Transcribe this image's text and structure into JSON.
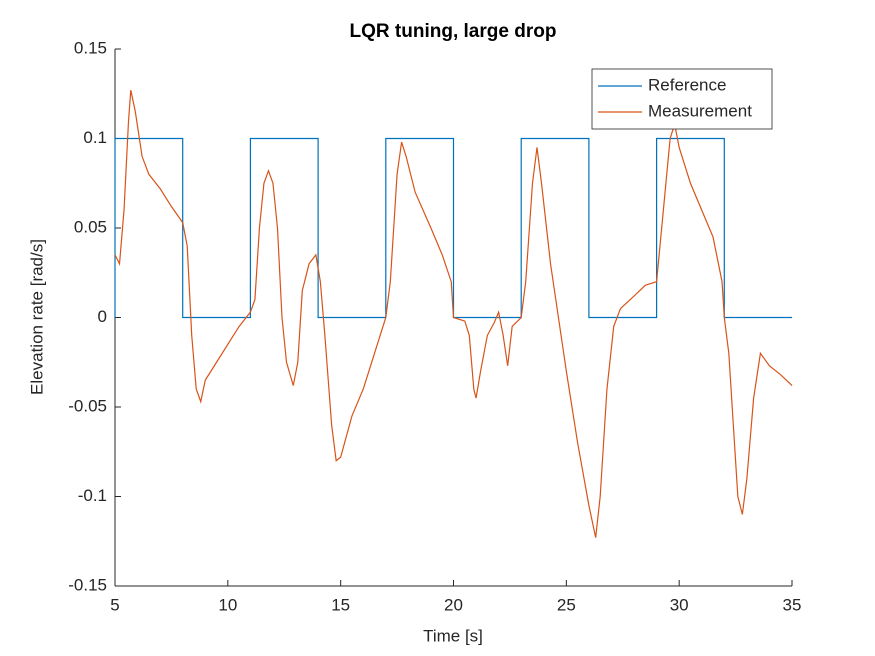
{
  "chart_data": {
    "type": "line",
    "title": "LQR tuning, large drop",
    "x_label": "Time [s]",
    "y_label": "Elevation rate [rad/s]",
    "xlim": [
      5,
      35
    ],
    "ylim": [
      -0.15,
      0.15
    ],
    "xticks": [
      5,
      10,
      15,
      20,
      25,
      30,
      35
    ],
    "yticks": [
      -0.15,
      -0.1,
      -0.05,
      0,
      0.05,
      0.1,
      0.15
    ],
    "legend": "northeast",
    "series": [
      {
        "name": "Reference",
        "color": "#0072bd",
        "x": [
          5,
          5,
          8,
          8,
          11,
          11,
          14,
          14,
          17,
          17,
          20,
          20,
          23,
          23,
          26,
          26,
          29,
          29,
          32,
          32,
          35
        ],
        "values": [
          0,
          0.1,
          0.1,
          0,
          0,
          0.1,
          0.1,
          0,
          0,
          0.1,
          0.1,
          0,
          0,
          0.1,
          0.1,
          0,
          0,
          0.1,
          0.1,
          0,
          0
        ]
      },
      {
        "name": "Measurement",
        "color": "#d95319",
        "x": [
          5.0,
          5.2,
          5.4,
          5.6,
          5.7,
          5.9,
          6.2,
          6.5,
          7,
          7.5,
          8.0,
          8.2,
          8.4,
          8.6,
          8.8,
          9.0,
          9.5,
          10,
          10.5,
          11,
          11.2,
          11.4,
          11.6,
          11.8,
          12.0,
          12.2,
          12.4,
          12.6,
          12.9,
          13.1,
          13.3,
          13.6,
          13.9,
          14.1,
          14.3,
          14.6,
          14.8,
          15.0,
          15.5,
          16,
          16.5,
          17,
          17.2,
          17.5,
          17.7,
          17.9,
          18.3,
          19,
          19.5,
          19.9,
          20.0,
          20.5,
          20.7,
          20.9,
          21.0,
          21.2,
          21.5,
          21.8,
          22.0,
          22.2,
          22.4,
          22.6,
          23.0,
          23.2,
          23.5,
          23.7,
          23.9,
          24.3,
          25,
          25.5,
          26.0,
          26.3,
          26.5,
          26.8,
          27.1,
          27.4,
          28,
          28.5,
          29.0,
          29.3,
          29.6,
          29.8,
          30.0,
          30.5,
          31,
          31.5,
          31.9,
          32.0,
          32.2,
          32.4,
          32.6,
          32.8,
          33.0,
          33.3,
          33.6,
          34,
          34.5,
          35
        ],
        "values": [
          0.035,
          0.03,
          0.06,
          0.11,
          0.127,
          0.115,
          0.09,
          0.08,
          0.072,
          0.062,
          0.053,
          0.04,
          -0.01,
          -0.04,
          -0.047,
          -0.035,
          -0.025,
          -0.015,
          -0.005,
          0.003,
          0.01,
          0.05,
          0.075,
          0.082,
          0.075,
          0.05,
          0.0,
          -0.025,
          -0.038,
          -0.025,
          0.015,
          0.03,
          0.035,
          0.02,
          -0.01,
          -0.06,
          -0.08,
          -0.078,
          -0.055,
          -0.04,
          -0.02,
          0.0,
          0.02,
          0.08,
          0.098,
          0.09,
          0.07,
          0.05,
          0.035,
          0.02,
          0.0,
          -0.002,
          -0.01,
          -0.04,
          -0.045,
          -0.03,
          -0.01,
          -0.003,
          0.003,
          -0.01,
          -0.027,
          -0.005,
          0.0,
          0.02,
          0.075,
          0.095,
          0.075,
          0.03,
          -0.03,
          -0.07,
          -0.105,
          -0.123,
          -0.1,
          -0.04,
          -0.005,
          0.005,
          0.012,
          0.018,
          0.02,
          0.06,
          0.1,
          0.108,
          0.095,
          0.075,
          0.06,
          0.045,
          0.02,
          0.0,
          -0.02,
          -0.06,
          -0.1,
          -0.11,
          -0.09,
          -0.045,
          -0.02,
          -0.027,
          -0.032,
          -0.038
        ]
      }
    ]
  }
}
